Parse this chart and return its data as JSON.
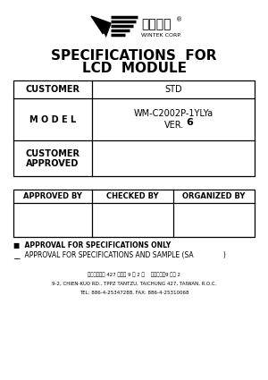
{
  "title_line1": "SPECIFICATIONS  FOR",
  "title_line2": "LCD  MODULE",
  "bg_color": "#ffffff",
  "table1": {
    "col1_label": "CUSTOMER",
    "col2_label": "STD",
    "row2_col1": "M O D E L",
    "row2_col2_line1": "WM-C2002P-1YLYa",
    "row3_col1_line1": "CUSTOMER",
    "row3_col1_line2": "APPROVED",
    "row3_col2": ""
  },
  "table2": {
    "col1": "APPROVED BY",
    "col2": "CHECKED BY",
    "col3": "ORGANIZED BY"
  },
  "approval_line1": "■  APPROVAL FOR SPECIFICATIONS ONLY",
  "approval_line2": "__  APPROVAL FOR SPECIFICATIONS AND SAMPLE (SA              )",
  "footer_line1": "台中市淡水區 427 建國路 9 之 2 號    公司個號：9 天地 2",
  "footer_line2": "9-2, CHIEN-KUO RD., TPPZ TANTZU, TAICHUNG 427, TAIWAN, R.O.C.",
  "footer_line3": "TEL: 886-4-25347288, FAX: 886-4-25310068"
}
